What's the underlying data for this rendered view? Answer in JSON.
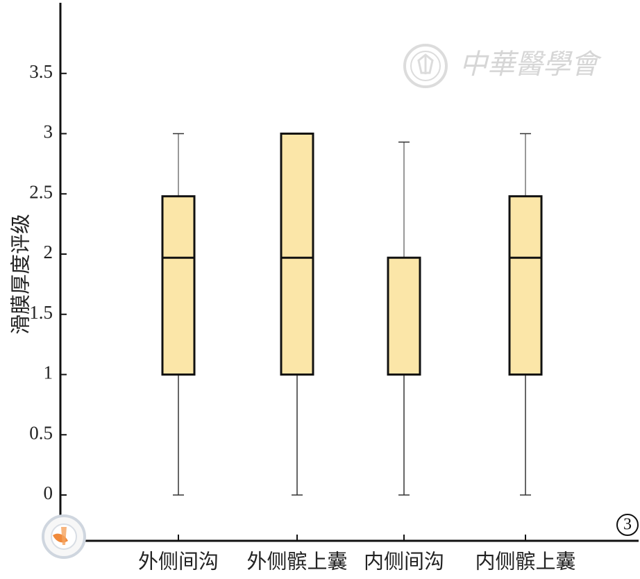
{
  "chart_data": {
    "type": "box",
    "ylabel": "滑膜厚度评级",
    "xlabel": "",
    "ylim": [
      -0.4,
      4.1
    ],
    "yticks": [
      0,
      0.5,
      1,
      1.5,
      2,
      2.5,
      3,
      3.5
    ],
    "ytick_labels": [
      "0",
      "0.5",
      "1",
      "1.5",
      "2",
      "2.5",
      "3",
      "3.5"
    ],
    "categories": [
      "外侧间沟",
      "外侧髌上囊",
      "内侧间沟",
      "内侧髌上囊"
    ],
    "boxes": [
      {
        "category": "外侧间沟",
        "min": 0,
        "q1": 1,
        "median": 1.97,
        "q3": 2.48,
        "max": 3
      },
      {
        "category": "外侧髌上囊",
        "min": 0,
        "q1": 1,
        "median": 1.97,
        "q3": 3,
        "max": 3
      },
      {
        "category": "内侧间沟",
        "min": 0,
        "q1": 1,
        "median": 1,
        "q3": 1.97,
        "max": 2.93
      },
      {
        "category": "内侧髌上囊",
        "min": 0,
        "q1": 1,
        "median": 1.97,
        "q3": 2.48,
        "max": 3
      }
    ],
    "box_fill_color": "#fbe6a8",
    "box_stroke_color": "#111111",
    "grid": false
  },
  "panel_label": "3",
  "watermark": {
    "text": "中華醫學會",
    "seal_name": "chinese-medical-association-seal-icon"
  },
  "logo": {
    "name": "chinese-medical-association-logo-icon"
  }
}
